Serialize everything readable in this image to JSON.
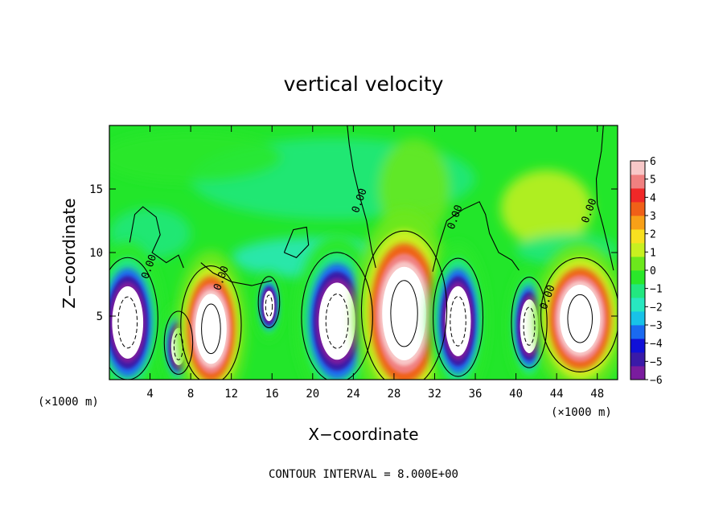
{
  "chart_data": {
    "type": "heatmap",
    "title": "vertical velocity",
    "xlabel": "X−coordinate",
    "ylabel": "Z−coordinate",
    "x_unit_left": "(×1000 m)",
    "x_unit_right": "(×1000 m)",
    "xlim": [
      0,
      50
    ],
    "ylim": [
      0,
      20
    ],
    "x_ticks": [
      4,
      8,
      12,
      16,
      20,
      24,
      28,
      32,
      36,
      40,
      44,
      48
    ],
    "x_tick_labels": [
      "4",
      "8",
      "12",
      "16",
      "20",
      "24",
      "28",
      "32",
      "36",
      "40",
      "44",
      "48"
    ],
    "y_ticks": [
      5,
      10,
      15
    ],
    "y_tick_labels": [
      "5",
      "10",
      "15"
    ],
    "colorbar": {
      "min": -6,
      "max": 6,
      "tick_values": [
        6,
        5,
        4,
        3,
        2,
        1,
        0,
        -1,
        -2,
        -3,
        -4,
        -5,
        -6
      ],
      "tick_labels": [
        "6",
        "5",
        "4",
        "3",
        "2",
        "1",
        "0",
        "−1",
        "−2",
        "−3",
        "−4",
        "−5",
        "−6"
      ],
      "colors": [
        "#7a1c9e",
        "#3a1aa8",
        "#1010d8",
        "#1a6af0",
        "#18c2e8",
        "#28e8c0",
        "#22e880",
        "#2ae82a",
        "#6ce81c",
        "#c8f020",
        "#f8e020",
        "#f8a018",
        "#f06018",
        "#f02828",
        "#f08080",
        "#f8c8c8"
      ]
    },
    "contour_labels": [
      {
        "text": "0.00",
        "x": 24.9,
        "z": 14.0
      },
      {
        "text": "0.00",
        "x": 34.3,
        "z": 12.7
      },
      {
        "text": "0.00",
        "x": 47.5,
        "z": 13.2
      },
      {
        "text": "0.00",
        "x": 4.2,
        "z": 8.8
      },
      {
        "text": "0.00",
        "x": 11.3,
        "z": 7.9
      },
      {
        "text": "0.00",
        "x": 43.4,
        "z": 6.4
      }
    ],
    "cells": [
      {
        "x": 1.8,
        "z": 4.5,
        "rx": 1.7,
        "rz": 3.1,
        "w": -9
      },
      {
        "x": 6.8,
        "z": 2.6,
        "rx": 0.8,
        "rz": 1.6,
        "w": -9
      },
      {
        "x": 10.0,
        "z": 4.0,
        "rx": 1.7,
        "rz": 3.0,
        "w": 9
      },
      {
        "x": 15.7,
        "z": 5.8,
        "rx": 0.6,
        "rz": 1.3,
        "w": -9
      },
      {
        "x": 22.4,
        "z": 4.6,
        "rx": 2.0,
        "rz": 3.3,
        "w": -9
      },
      {
        "x": 29.0,
        "z": 5.2,
        "rx": 2.4,
        "rz": 4.0,
        "w": 9
      },
      {
        "x": 34.3,
        "z": 4.6,
        "rx": 1.4,
        "rz": 3.0,
        "w": -9
      },
      {
        "x": 41.3,
        "z": 4.2,
        "rx": 1.0,
        "rz": 2.3,
        "w": -9
      },
      {
        "x": 46.3,
        "z": 4.8,
        "rx": 2.2,
        "rz": 2.9,
        "w": 9
      }
    ],
    "footer": "CONTOUR INTERVAL = 8.000E+00"
  }
}
